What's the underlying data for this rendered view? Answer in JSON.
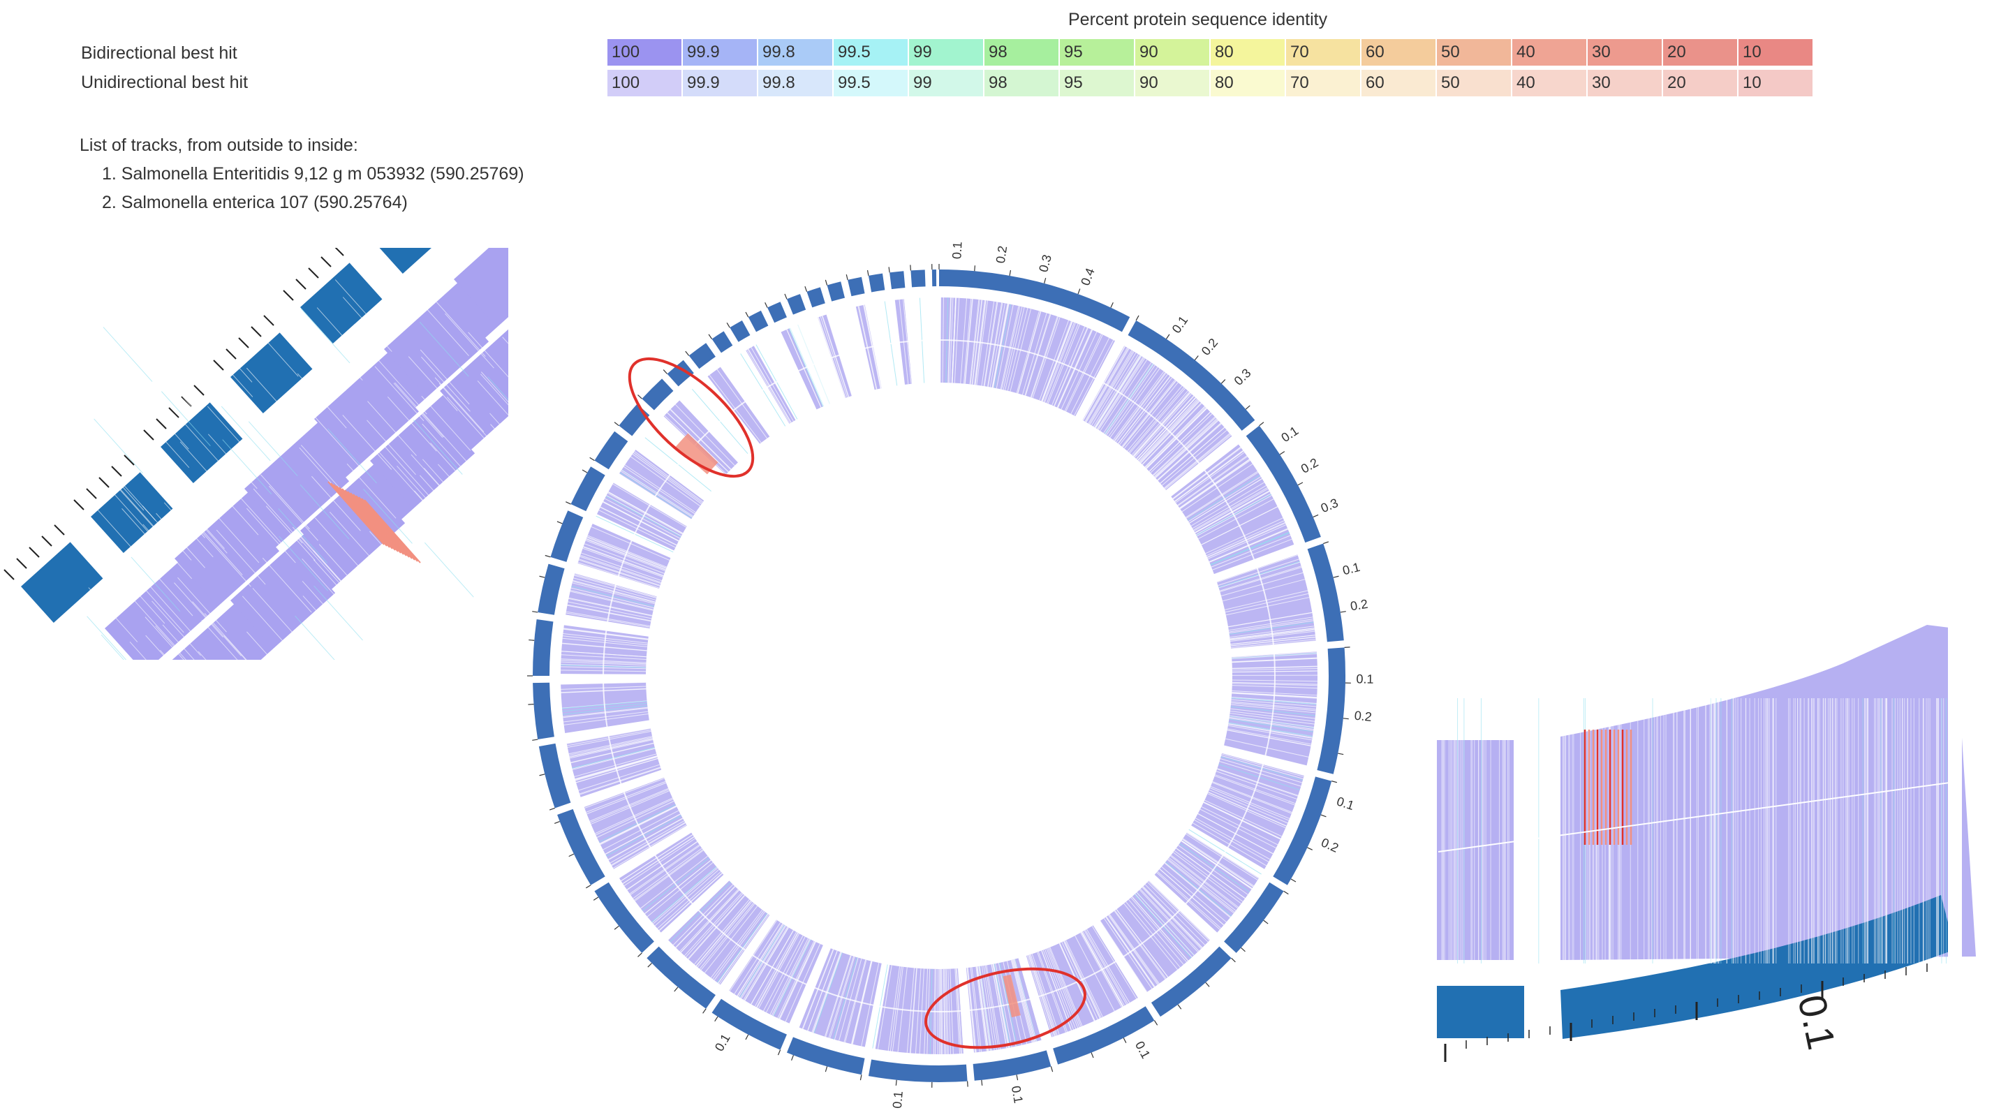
{
  "legend": {
    "title": "Percent protein sequence identity",
    "rows": [
      {
        "label": "Bidirectional best hit",
        "values": [
          "100",
          "99.9",
          "99.8",
          "99.5",
          "99",
          "98",
          "95",
          "90",
          "80",
          "70",
          "60",
          "50",
          "40",
          "30",
          "20",
          "10"
        ],
        "colors": [
          "#9b93f0",
          "#a5b4f6",
          "#aacbf7",
          "#a6f2f5",
          "#a2f4cf",
          "#a6ef9e",
          "#b7f09a",
          "#d4f39a",
          "#f4f59c",
          "#f6e2a0",
          "#f4cc9c",
          "#f1b799",
          "#efa494",
          "#ed9a8e",
          "#ea928a",
          "#e98884"
        ]
      },
      {
        "label": "Unidirectional best hit",
        "values": [
          "100",
          "99.9",
          "99.8",
          "99.5",
          "99",
          "98",
          "95",
          "90",
          "80",
          "70",
          "60",
          "50",
          "40",
          "30",
          "20",
          "10"
        ],
        "colors": [
          "#d2cdf8",
          "#d4dcfa",
          "#d8e7fb",
          "#d4f8fb",
          "#d2f8e9",
          "#d4f6d2",
          "#ddf7d0",
          "#eaf8d0",
          "#fafad0",
          "#fbf1d2",
          "#faead2",
          "#f9e0cf",
          "#f7d6cc",
          "#f6d1c9",
          "#f5cdc7",
          "#f4c9c6"
        ]
      }
    ]
  },
  "tracks": {
    "heading": "List of tracks, from outside to inside:",
    "items": [
      "1. Salmonella Enteritidis 9,12 g m 053932 (590.25769)",
      "2. Salmonella enterica 107 (590.25764)"
    ]
  },
  "ring_tick_labels": [
    "0.1",
    "0.2",
    "0.3",
    "0.4",
    "0.1",
    "0.2",
    "0.3",
    "0.1",
    "0.2",
    "0.3",
    "0.1",
    "0.2",
    "0.1",
    "0.2",
    "0.1",
    "0.2",
    "0.1",
    "0.1",
    "0.1",
    "0.1"
  ],
  "zoom_right_tick_label": "0.1",
  "colors": {
    "contig_blue": "#3d6fb6",
    "inset_blue": "#2170b2",
    "hit_lavender": "#a9a2f0",
    "highlight_red": "#e0312b",
    "mismatch_salmon": "#f29080",
    "mismatch_cyan": "#8fe0f0"
  }
}
